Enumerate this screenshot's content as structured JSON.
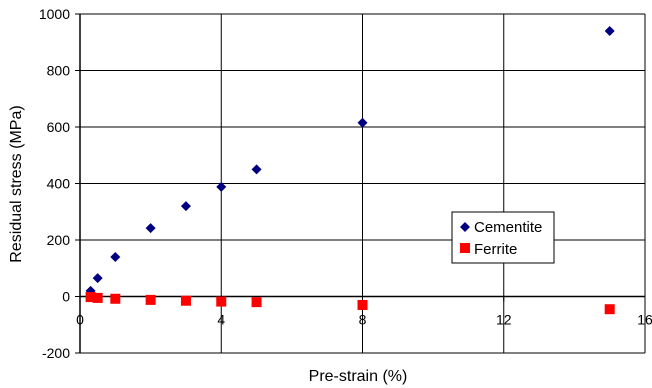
{
  "chart_data": {
    "type": "scatter",
    "title": "",
    "xlabel": "Pre-strain (%)",
    "ylabel": "Residual stress (MPa)",
    "xlim": [
      0,
      16
    ],
    "ylim": [
      -200,
      1000
    ],
    "x_ticks": [
      0,
      4,
      8,
      12,
      16
    ],
    "y_ticks": [
      -200,
      0,
      200,
      400,
      600,
      800,
      1000
    ],
    "grid": true,
    "legend_position": "right",
    "series": [
      {
        "name": "Cementite",
        "marker": "diamond",
        "color": "#000080",
        "points": [
          {
            "x": 0.3,
            "y": 20
          },
          {
            "x": 0.5,
            "y": 65
          },
          {
            "x": 1,
            "y": 140
          },
          {
            "x": 2,
            "y": 242
          },
          {
            "x": 3,
            "y": 320
          },
          {
            "x": 4,
            "y": 388
          },
          {
            "x": 5,
            "y": 450
          },
          {
            "x": 8,
            "y": 615
          },
          {
            "x": 15,
            "y": 940
          }
        ]
      },
      {
        "name": "Ferrite",
        "marker": "square",
        "color": "#ff0000",
        "points": [
          {
            "x": 0.3,
            "y": -2
          },
          {
            "x": 0.5,
            "y": -5
          },
          {
            "x": 1,
            "y": -8
          },
          {
            "x": 2,
            "y": -12
          },
          {
            "x": 3,
            "y": -15
          },
          {
            "x": 4,
            "y": -18
          },
          {
            "x": 5,
            "y": -20
          },
          {
            "x": 8,
            "y": -30
          },
          {
            "x": 15,
            "y": -45
          }
        ]
      }
    ]
  }
}
